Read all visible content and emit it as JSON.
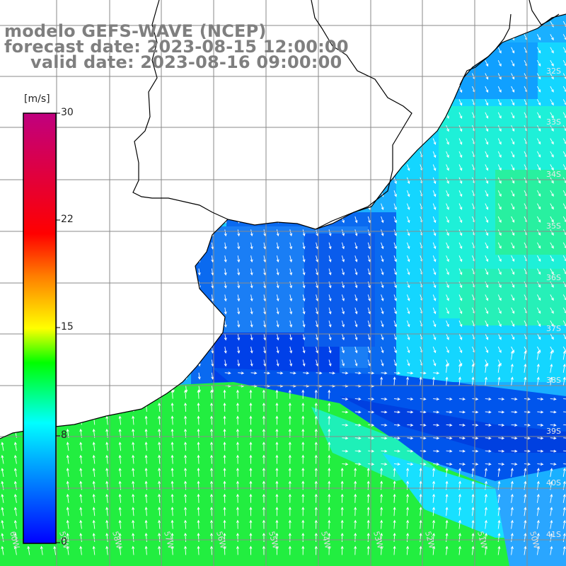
{
  "title": {
    "line1": "modelo GEFS-WAVE (NCEP)",
    "line2": "forecast date: 2023-08-15 12:00:00",
    "line3": "valid date: 2023-08-16 09:00:00"
  },
  "colorbar": {
    "unit": "[m/s]",
    "ticks": [
      "30",
      "22",
      "15",
      "8",
      "0"
    ],
    "tick_values": [
      30,
      22,
      15,
      8,
      0
    ],
    "colors": [
      "#0000ff",
      "#00b4ff",
      "#00ffff",
      "#00ff00",
      "#ffff00",
      "#ff7f00",
      "#ff0000",
      "#c0007f"
    ]
  },
  "map": {
    "lat_labels": [
      "32S",
      "33S",
      "34S",
      "35S",
      "36S",
      "37S",
      "38S",
      "39S",
      "40S",
      "41S"
    ],
    "lat_values": [
      32,
      33,
      34,
      35,
      36,
      37,
      38,
      39,
      40,
      41
    ],
    "lon_labels": [
      "60W",
      "59W",
      "58W",
      "57W",
      "56W",
      "55W",
      "54W",
      "53W",
      "52W",
      "51W",
      "50W"
    ],
    "lon_values": [
      60,
      59,
      58,
      57,
      56,
      55,
      54,
      53,
      52,
      51,
      50
    ],
    "land_color": "#ffffff",
    "coast_color": "#000000",
    "grid_color": "#808080",
    "arrow_color": "#ffffff"
  }
}
